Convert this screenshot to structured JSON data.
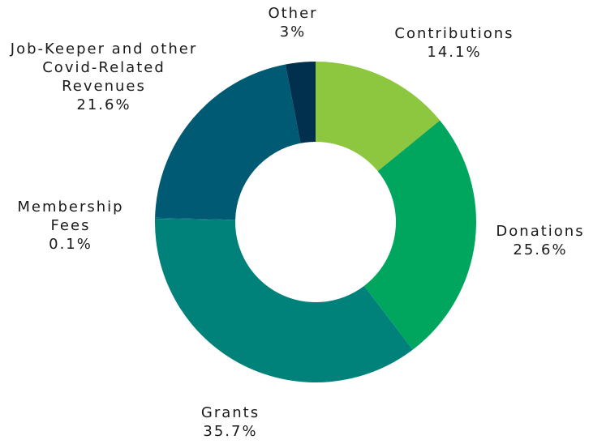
{
  "chart_data": {
    "type": "donut",
    "categories": [
      "Contributions",
      "Donations",
      "Grants",
      "Membership Fees",
      "Job-Keeper and other Covid-Related Revenues",
      "Other"
    ],
    "values": [
      14.1,
      25.6,
      35.7,
      0.1,
      21.6,
      3
    ],
    "value_labels": [
      "14.1%",
      "25.6%",
      "35.7%",
      "0.1%",
      "21.6%",
      "3%"
    ],
    "colors": [
      "#8dc63f",
      "#00a65d",
      "#00827a",
      "#006a77",
      "#005a73",
      "#00304e"
    ]
  }
}
